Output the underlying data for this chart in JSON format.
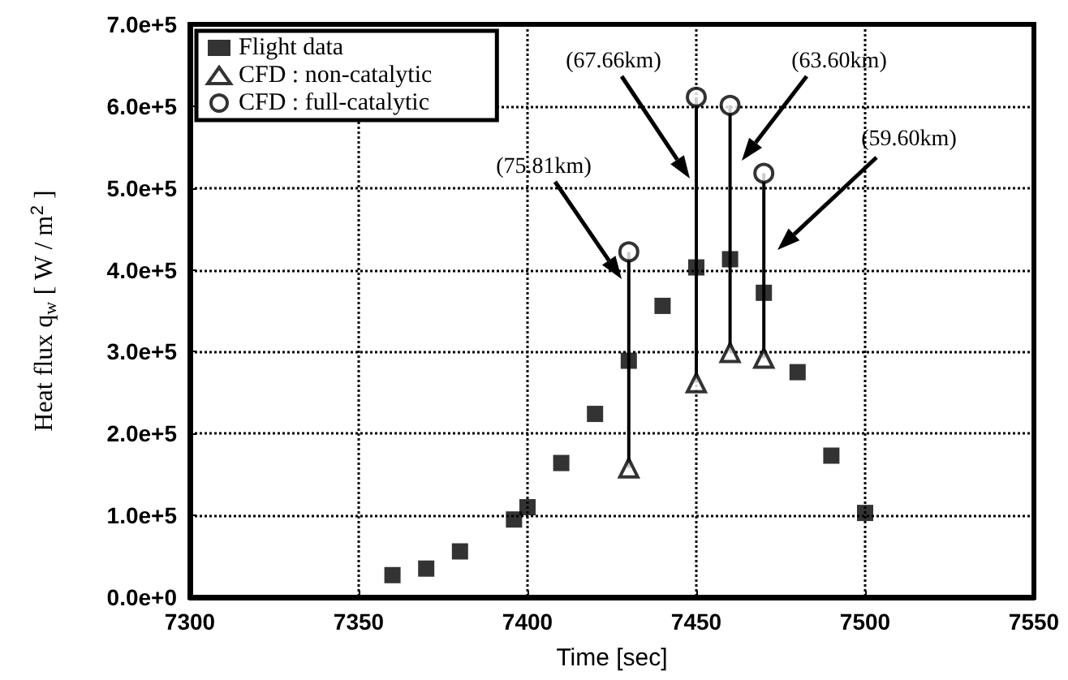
{
  "chart_data": {
    "type": "scatter",
    "xlabel": "Time [sec]",
    "ylabel": "Heat flux q$_{w}$ [ W / m$^{2}$ ]",
    "series": [
      {
        "name": "Flight data",
        "color": "#000000",
        "marker": "square",
        "x": [
          7360,
          7370,
          7380,
          7396,
          7400,
          7410,
          7420,
          7430,
          7440,
          7450,
          7460,
          7470,
          7480,
          7490,
          7500
        ],
        "values": [
          27000,
          35000,
          56000,
          95000,
          110000,
          164000,
          224000,
          289000,
          356000,
          403000,
          413000,
          372000,
          275000,
          173000,
          103000
        ],
        "errors": [
          null,
          null,
          null,
          null,
          null,
          null,
          null,
          [
            158000,
            422000
          ],
          null,
          [
            262000,
            611000
          ],
          [
            299000,
            601000
          ],
          [
            292000,
            518000
          ],
          null,
          null,
          null
        ]
      },
      {
        "name": "CFD : non-catalytic",
        "color": "#000000",
        "marker": "triangle-open",
        "x": [
          7430,
          7450,
          7460,
          7470
        ],
        "values": [
          158000,
          262000,
          299000,
          292000
        ]
      },
      {
        "name": "CFD : full-catalytic",
        "color": "#000000",
        "marker": "circle-open",
        "x": [
          7430,
          7450,
          7460,
          7470
        ],
        "values": [
          422000,
          611000,
          601000,
          518000
        ]
      }
    ],
    "xlim": [
      7300,
      7550
    ],
    "xticks": [
      7300,
      7350,
      7400,
      7450,
      7500,
      7550
    ],
    "ylim": [
      0,
      700000
    ],
    "yticks": [
      {
        "value": 0,
        "label": "0.0e+0"
      },
      {
        "value": 100000,
        "label": "1.0e+5"
      },
      {
        "value": 200000,
        "label": "2.0e+5"
      },
      {
        "value": 300000,
        "label": "3.0e+5"
      },
      {
        "value": 400000,
        "label": "4.0e+5"
      },
      {
        "value": 500000,
        "label": "5.0e+5"
      },
      {
        "value": 600000,
        "label": "6.0e+5"
      },
      {
        "value": 700000,
        "label": "7.0e+5"
      }
    ],
    "annotations": [
      "(75.81km)",
      "(67.66km)",
      "(63.60km)",
      "(59.60km)"
    ],
    "grid": true,
    "legend": "top left"
  }
}
